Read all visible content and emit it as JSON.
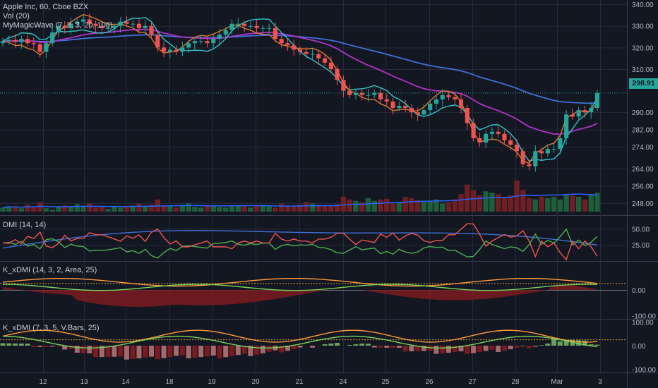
{
  "legend": {
    "main_title": "Apple Inc, 60, Cboe BZX",
    "volume": "Vol (20)",
    "wave": "MyMagicWave (7, 2, 3, 20, 100)",
    "dmi": "DMI (14, 14)",
    "kxdmi_area": "K_xDMI (14, 3, 2, Area, 25)",
    "kxdmi_bars": "K_xDMI (7, 3, 5, V.Bars, 25)"
  },
  "last_price": "298.91",
  "colors": {
    "background": "#131722",
    "grid": "#262b3a",
    "candle_up": "#26a69a",
    "candle_down": "#ef5350",
    "price_tag": "#26a69a",
    "ma_blue": "#3f6fd6",
    "ma_purple": "#b232c4",
    "wave_cyan": "#2ec7c9",
    "wave_orange": "#e0772c",
    "dmi_plus": "#4caf50",
    "dmi_minus": "#ef5350",
    "dmi_adx": "#3f6fd6",
    "osc_orange": "#ff9a3c",
    "osc_green": "#7bd25b",
    "hist_pos": "#6a9f5e",
    "hist_neg": "#7b1b1f",
    "hist_neg_light": "#a36a6e"
  },
  "chart_data": [
    {
      "type": "candlestick",
      "name": "price",
      "ylim": [
        244,
        342
      ],
      "y_ticks": [
        "340.00",
        "330.00",
        "320.00",
        "310.00",
        "290.00",
        "282.00",
        "274.00",
        "264.00",
        "256.00",
        "248.00"
      ],
      "x_ticks": [
        "12",
        "13",
        "14",
        "18",
        "19",
        "20",
        "21",
        "24",
        "25",
        "26",
        "27",
        "28",
        "Mar",
        "3"
      ],
      "close": [
        323,
        323.5,
        322.5,
        324,
        322,
        321.5,
        318,
        322,
        327,
        330,
        329,
        331,
        332,
        333,
        331,
        330,
        329,
        329,
        330,
        332,
        331,
        331,
        329,
        330,
        326,
        320,
        318,
        319,
        318,
        320,
        322,
        323,
        323,
        322,
        324,
        326,
        328,
        331,
        331,
        330,
        330,
        329,
        329,
        329,
        324,
        322,
        321,
        319,
        318,
        317,
        317,
        315,
        313,
        310,
        305,
        300,
        298,
        299,
        298,
        298,
        299,
        296,
        295,
        292,
        293,
        292,
        290,
        289,
        291,
        294,
        296,
        298,
        297,
        296,
        292,
        285,
        278,
        276,
        280,
        281,
        280,
        277,
        275,
        272,
        266,
        265,
        272,
        271,
        273,
        273,
        278,
        289,
        288,
        291,
        290,
        292,
        298.91
      ],
      "volume": [
        6,
        8,
        7,
        5,
        10,
        6,
        14,
        5,
        3,
        8,
        9,
        7,
        11,
        9,
        12,
        6,
        7,
        4,
        8,
        6,
        7,
        9,
        12,
        8,
        10,
        18,
        9,
        8,
        6,
        10,
        12,
        7,
        6,
        8,
        9,
        7,
        6,
        8,
        9,
        8,
        6,
        9,
        10,
        8,
        6,
        12,
        9,
        8,
        10,
        14,
        12,
        10,
        8,
        9,
        11,
        22,
        18,
        16,
        14,
        20,
        16,
        18,
        19,
        12,
        14,
        22,
        20,
        17,
        15,
        16,
        18,
        12,
        14,
        18,
        26,
        40,
        32,
        24,
        30,
        28,
        26,
        20,
        24,
        46,
        32,
        20,
        18,
        22,
        20,
        22,
        18,
        26,
        24,
        22,
        18,
        26,
        28
      ]
    },
    {
      "type": "line",
      "name": "DMI",
      "ylim": [
        0,
        70
      ],
      "y_ticks": [
        "50.00",
        "25.00"
      ]
    },
    {
      "type": "area",
      "name": "K_xDMI area",
      "ylim": [
        -110,
        110
      ],
      "y_ticks": [
        "0.00",
        "-100.00"
      ]
    },
    {
      "type": "bar",
      "name": "K_xDMI bars",
      "ylim": [
        -110,
        110
      ],
      "y_ticks": [
        "100.00",
        "0.00",
        "-100.00"
      ]
    }
  ]
}
